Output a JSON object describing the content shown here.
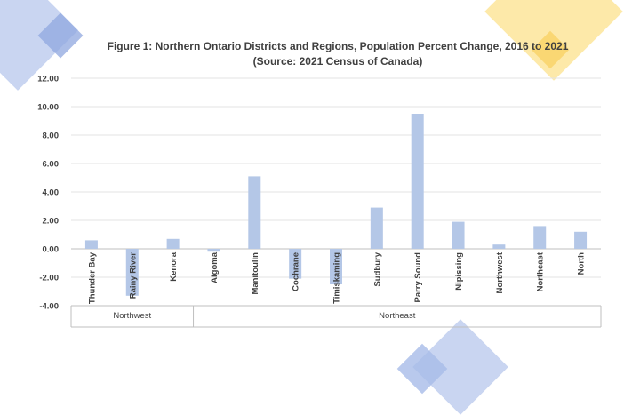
{
  "chart_data": {
    "type": "bar",
    "title": "Figure 1: Northern Ontario Districts and Regions, Population Percent Change, 2016 to 2021",
    "subtitle": "(Source: 2021 Census of Canada)",
    "categories": [
      "Thunder Bay",
      "Rainy River",
      "Kenora",
      "Algoma",
      "Manitoulin",
      "Cochrane",
      "Timiskaming",
      "Sudbury",
      "Parry Sound",
      "Nipissing",
      "Northwest",
      "Northeast",
      "North"
    ],
    "values": [
      0.6,
      -3.3,
      0.7,
      -0.2,
      5.1,
      -2.1,
      -2.5,
      2.9,
      9.5,
      1.9,
      0.3,
      1.6,
      1.2
    ],
    "groups": [
      {
        "label": "Northwest",
        "count": 3
      },
      {
        "label": "Northeast",
        "count": 10
      }
    ],
    "yticks": [
      "12.00",
      "10.00",
      "8.00",
      "6.00",
      "4.00",
      "2.00",
      "0.00",
      "-2.00",
      "-4.00"
    ],
    "ylim": [
      -4,
      12
    ],
    "grid": true,
    "bar_color": "#b4c7e7"
  }
}
